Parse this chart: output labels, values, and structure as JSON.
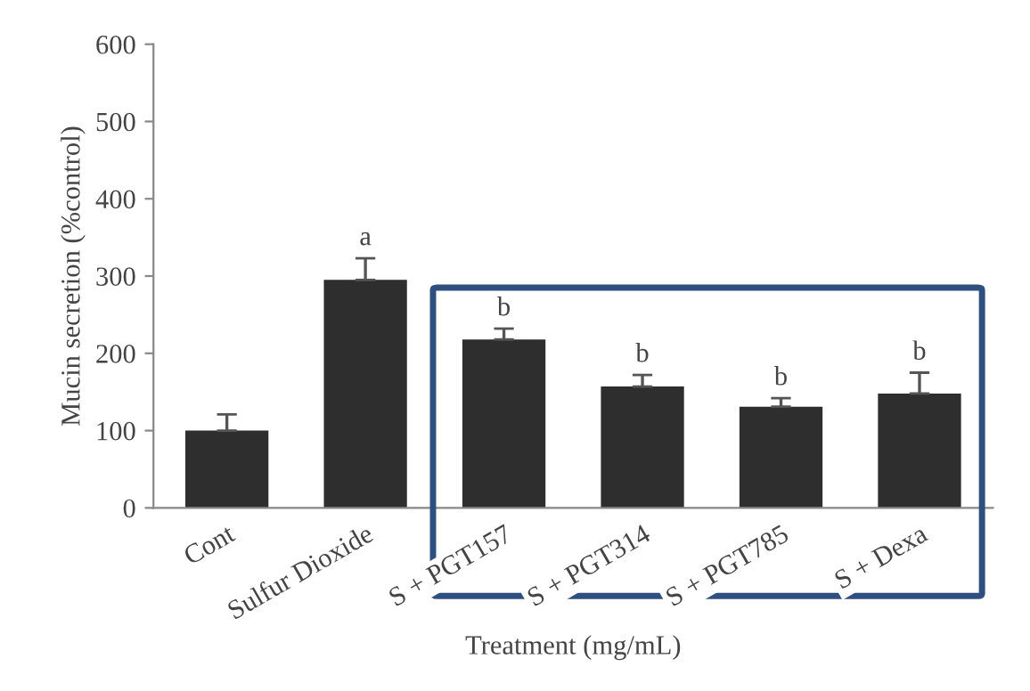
{
  "chart_data": {
    "type": "bar",
    "xlabel": "Treatment (mg/mL)",
    "ylabel": "Mucin secretion (%control)",
    "categories": [
      "Cont",
      "Sulfur Dioxide",
      "S + PGT157",
      "S + PGT314",
      "S + PGT785",
      "S + Dexa"
    ],
    "values": [
      100,
      295,
      218,
      157,
      131,
      148
    ],
    "errors": [
      [
        100,
        121
      ],
      [
        295,
        323
      ],
      [
        218,
        232
      ],
      [
        157,
        172
      ],
      [
        131,
        142
      ],
      [
        148,
        175
      ]
    ],
    "color": "#2e2e2e",
    "ylim": [
      0,
      600
    ],
    "yticks": [
      0,
      100,
      200,
      300,
      400,
      500,
      600
    ],
    "grid": false,
    "legend": false,
    "annotations": [
      {
        "text": "a",
        "x": "Sulfur Dioxide",
        "y": 323
      },
      {
        "text": "b",
        "x": "S + PGT157",
        "y": 232
      },
      {
        "text": "b",
        "x": "S + PGT314",
        "y": 172
      },
      {
        "text": "b",
        "x": "S + PGT785",
        "y": 142
      },
      {
        "text": "b",
        "x": "S + Dexa",
        "y": 175
      }
    ]
  }
}
